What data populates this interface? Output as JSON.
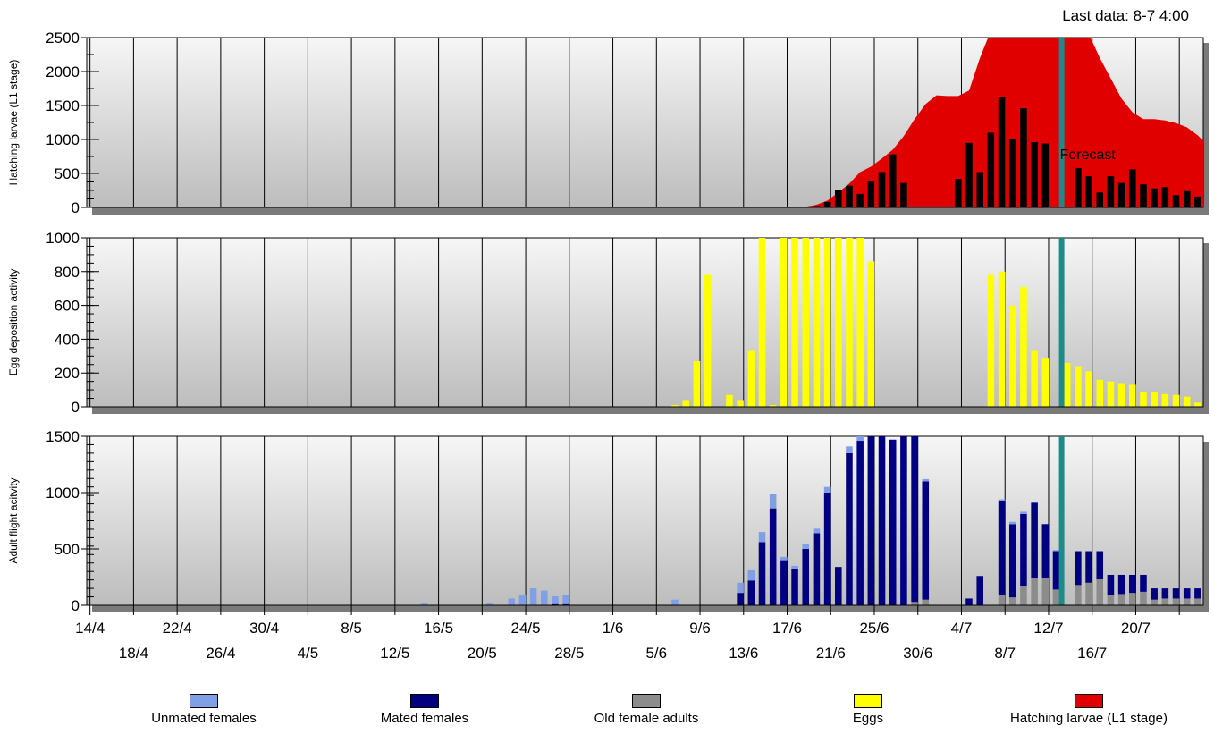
{
  "status": {
    "last_data": "Last data: 8-7 4:00"
  },
  "forecast_label": "Forecast",
  "colors": {
    "unmated": "#7f9fe6",
    "mated": "#000080",
    "old": "#8c8c8c",
    "eggs": "#ffff00",
    "larvae": "#e00000",
    "larvae_bars": "#000000",
    "now_line": "#1f8a8a"
  },
  "legend": [
    {
      "key": "unmated",
      "label": "Unmated females"
    },
    {
      "key": "mated",
      "label": "Mated females"
    },
    {
      "key": "old",
      "label": "Old female adults"
    },
    {
      "key": "eggs",
      "label": "Eggs"
    },
    {
      "key": "larvae",
      "label": "Hatching larvae (L1 stage)"
    }
  ],
  "chart_data": [
    {
      "type": "area",
      "ylabel": "Hatching larvae (L1 stage)",
      "ylim": [
        0,
        2500
      ],
      "yticks": [
        0,
        500,
        1000,
        1500,
        2000,
        2500
      ],
      "x_days": "days from 12/4 to 23/7",
      "area_series": {
        "name": "Hatching larvae (L1 stage)",
        "points": [
          [
            67,
            0
          ],
          [
            68,
            10
          ],
          [
            69,
            40
          ],
          [
            70,
            100
          ],
          [
            71,
            220
          ],
          [
            72,
            350
          ],
          [
            73,
            520
          ],
          [
            74,
            600
          ],
          [
            75,
            720
          ],
          [
            76,
            850
          ],
          [
            77,
            1050
          ],
          [
            78,
            1300
          ],
          [
            79,
            1520
          ],
          [
            80,
            1650
          ],
          [
            81,
            1640
          ],
          [
            82,
            1640
          ],
          [
            83,
            1720
          ],
          [
            84,
            2200
          ],
          [
            85,
            2600
          ],
          [
            86,
            2700
          ],
          [
            87,
            2700
          ],
          [
            88,
            2700
          ],
          [
            89,
            2700
          ],
          [
            90,
            2700
          ],
          [
            91,
            2700
          ],
          [
            92,
            2700
          ],
          [
            93,
            2700
          ],
          [
            94,
            2550
          ],
          [
            95,
            2200
          ],
          [
            96,
            1900
          ],
          [
            97,
            1600
          ],
          [
            98,
            1400
          ],
          [
            99,
            1300
          ],
          [
            100,
            1300
          ],
          [
            101,
            1280
          ],
          [
            102,
            1240
          ],
          [
            103,
            1180
          ],
          [
            104,
            1060
          ],
          [
            105,
            900
          ],
          [
            106,
            800
          ],
          [
            107,
            700
          ],
          [
            108,
            600
          ],
          [
            109,
            520
          ],
          [
            110,
            480
          ]
        ]
      },
      "bar_series": {
        "name": "Hatching larvae bars",
        "x": [
          69,
          70,
          71,
          72,
          73,
          74,
          75,
          76,
          77,
          78,
          82,
          83,
          84,
          85,
          86,
          87,
          88,
          89,
          90,
          91,
          92,
          93,
          94,
          95,
          96,
          97,
          98,
          99,
          100,
          101,
          102,
          103,
          104,
          105,
          106,
          107,
          108,
          109,
          110
        ],
        "values": [
          20,
          80,
          260,
          320,
          200,
          380,
          520,
          780,
          360,
          0,
          420,
          950,
          520,
          1100,
          1620,
          1000,
          1460,
          960,
          940,
          0,
          0,
          580,
          460,
          220,
          460,
          360,
          560,
          340,
          280,
          300,
          180,
          240,
          160,
          200,
          100,
          0,
          0,
          0,
          0
        ]
      },
      "forecast_x": 91.5
    },
    {
      "type": "bar",
      "ylabel": "Egg deposition activity",
      "ylim": [
        0,
        1000
      ],
      "yticks": [
        0,
        200,
        400,
        600,
        800,
        1000
      ],
      "series": [
        {
          "name": "Eggs",
          "x": [
            56,
            57,
            58,
            59,
            61,
            62,
            63,
            64,
            65,
            66,
            67,
            68,
            69,
            70,
            71,
            72,
            73,
            74,
            76,
            77,
            78,
            79,
            80,
            81,
            82,
            83,
            84,
            85,
            86,
            87,
            88,
            89,
            90,
            91,
            92,
            93,
            94,
            95,
            96,
            97,
            98,
            99,
            100,
            101,
            102,
            103,
            104,
            105,
            106,
            107
          ],
          "values": [
            10,
            40,
            270,
            780,
            70,
            40,
            330,
            1000,
            10,
            1000,
            1000,
            1000,
            1000,
            1000,
            1000,
            1000,
            1000,
            860,
            0,
            0,
            0,
            0,
            0,
            0,
            0,
            0,
            0,
            780,
            800,
            600,
            710,
            330,
            290,
            0,
            260,
            240,
            210,
            160,
            150,
            140,
            130,
            90,
            85,
            75,
            70,
            60,
            25,
            20,
            0,
            0
          ]
        }
      ],
      "forecast_x": 91.5
    },
    {
      "type": "bar",
      "ylabel": "Adult flight acitvity",
      "ylim": [
        0,
        1500
      ],
      "yticks": [
        0,
        500,
        1000,
        1500
      ],
      "stacked": true,
      "series_order": [
        "old",
        "mated",
        "unmated"
      ],
      "bars": [
        {
          "x": 33,
          "old": 0,
          "mated": 0,
          "unmated": 15
        },
        {
          "x": 39,
          "old": 0,
          "mated": 0,
          "unmated": 15
        },
        {
          "x": 41,
          "old": 0,
          "mated": 0,
          "unmated": 60
        },
        {
          "x": 42,
          "old": 0,
          "mated": 0,
          "unmated": 90
        },
        {
          "x": 43,
          "old": 0,
          "mated": 0,
          "unmated": 150
        },
        {
          "x": 44,
          "old": 0,
          "mated": 0,
          "unmated": 130
        },
        {
          "x": 45,
          "old": 0,
          "mated": 10,
          "unmated": 70
        },
        {
          "x": 46,
          "old": 0,
          "mated": 10,
          "unmated": 80
        },
        {
          "x": 56,
          "old": 0,
          "mated": 0,
          "unmated": 50
        },
        {
          "x": 62,
          "old": 0,
          "mated": 110,
          "unmated": 90
        },
        {
          "x": 63,
          "old": 0,
          "mated": 220,
          "unmated": 90
        },
        {
          "x": 64,
          "old": 0,
          "mated": 560,
          "unmated": 90
        },
        {
          "x": 65,
          "old": 0,
          "mated": 860,
          "unmated": 130
        },
        {
          "x": 66,
          "old": 0,
          "mated": 400,
          "unmated": 30
        },
        {
          "x": 67,
          "old": 0,
          "mated": 320,
          "unmated": 30
        },
        {
          "x": 68,
          "old": 0,
          "mated": 500,
          "unmated": 40
        },
        {
          "x": 69,
          "old": 0,
          "mated": 640,
          "unmated": 40
        },
        {
          "x": 70,
          "old": 0,
          "mated": 1000,
          "unmated": 50
        },
        {
          "x": 71,
          "old": 0,
          "mated": 340,
          "unmated": 0
        },
        {
          "x": 72,
          "old": 0,
          "mated": 1350,
          "unmated": 60
        },
        {
          "x": 73,
          "old": 0,
          "mated": 1460,
          "unmated": 40
        },
        {
          "x": 74,
          "old": 0,
          "mated": 1500,
          "unmated": 20
        },
        {
          "x": 75,
          "old": 0,
          "mated": 1500,
          "unmated": 0
        },
        {
          "x": 76,
          "old": 0,
          "mated": 1470,
          "unmated": 0
        },
        {
          "x": 77,
          "old": 0,
          "mated": 1500,
          "unmated": 0
        },
        {
          "x": 78,
          "old": 30,
          "mated": 1470,
          "unmated": 0
        },
        {
          "x": 79,
          "old": 50,
          "mated": 1050,
          "unmated": 20
        },
        {
          "x": 83,
          "old": 0,
          "mated": 60,
          "unmated": 0
        },
        {
          "x": 84,
          "old": 0,
          "mated": 260,
          "unmated": 0
        },
        {
          "x": 86,
          "old": 90,
          "mated": 840,
          "unmated": 10
        },
        {
          "x": 87,
          "old": 70,
          "mated": 650,
          "unmated": 20
        },
        {
          "x": 88,
          "old": 170,
          "mated": 640,
          "unmated": 20
        },
        {
          "x": 89,
          "old": 240,
          "mated": 670,
          "unmated": 0
        },
        {
          "x": 90,
          "old": 240,
          "mated": 480,
          "unmated": 0
        },
        {
          "x": 91,
          "old": 140,
          "mated": 340,
          "unmated": 10
        },
        {
          "x": 93,
          "old": 180,
          "mated": 300,
          "unmated": 0
        },
        {
          "x": 94,
          "old": 200,
          "mated": 280,
          "unmated": 0
        },
        {
          "x": 95,
          "old": 230,
          "mated": 250,
          "unmated": 0
        },
        {
          "x": 96,
          "old": 90,
          "mated": 180,
          "unmated": 0
        },
        {
          "x": 97,
          "old": 100,
          "mated": 170,
          "unmated": 0
        },
        {
          "x": 98,
          "old": 110,
          "mated": 160,
          "unmated": 0
        },
        {
          "x": 99,
          "old": 120,
          "mated": 150,
          "unmated": 0
        },
        {
          "x": 100,
          "old": 50,
          "mated": 100,
          "unmated": 0
        },
        {
          "x": 101,
          "old": 60,
          "mated": 90,
          "unmated": 0
        },
        {
          "x": 102,
          "old": 60,
          "mated": 90,
          "unmated": 0
        },
        {
          "x": 103,
          "old": 60,
          "mated": 90,
          "unmated": 0
        },
        {
          "x": 104,
          "old": 60,
          "mated": 90,
          "unmated": 0
        },
        {
          "x": 105,
          "old": 20,
          "mated": 40,
          "unmated": 0
        },
        {
          "x": 106,
          "old": 30,
          "mated": 40,
          "unmated": 0
        }
      ],
      "forecast_x": 91.5
    }
  ],
  "x_axis": {
    "upper_labels": [
      "14/4",
      "22/4",
      "30/4",
      "8/5",
      "16/5",
      "24/5",
      "1/6",
      "9/6",
      "17/6",
      "25/6",
      "4/7",
      "12/7",
      "20/7"
    ],
    "lower_labels": [
      "18/4",
      "26/4",
      "4/5",
      "12/5",
      "20/5",
      "28/5",
      "5/6",
      "13/6",
      "21/6",
      "30/6",
      "8/7",
      "16/7"
    ]
  }
}
